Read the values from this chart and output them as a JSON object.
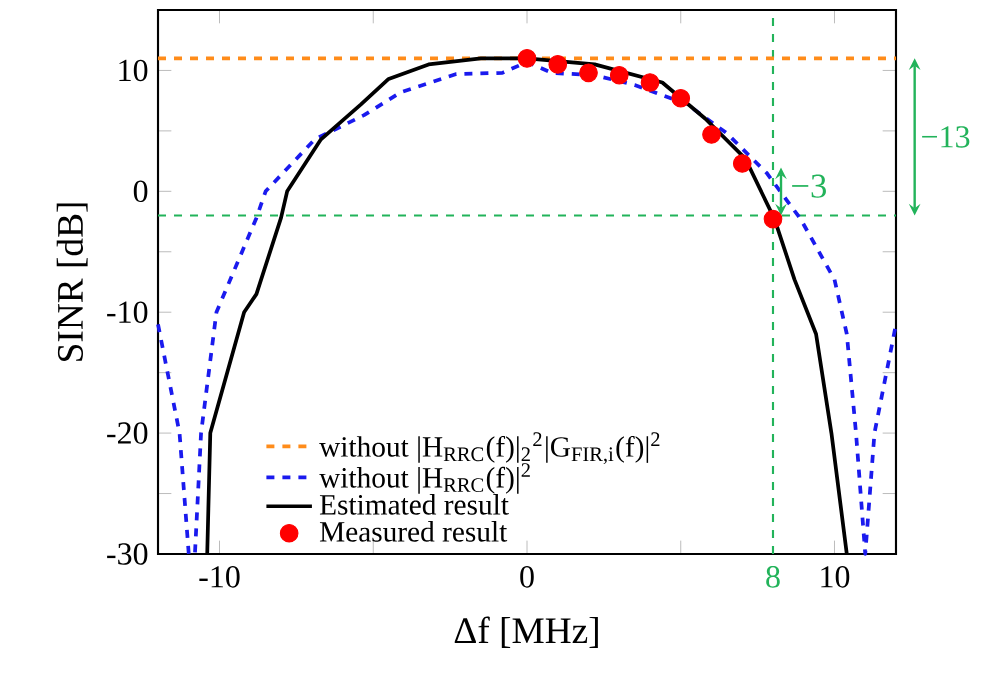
{
  "chart_data": {
    "type": "line",
    "xlabel": "Δf [MHz]",
    "ylabel": "SINR [dB]",
    "xlim": [
      -12,
      12
    ],
    "ylim": [
      -30,
      15
    ],
    "xticks": [
      -10,
      {
        "value": -5,
        "label": null
      },
      0,
      {
        "value": 5,
        "label": null
      },
      10
    ],
    "yticks": [
      -30,
      {
        "value": -25,
        "label": null
      },
      -20,
      {
        "value": -15,
        "label": null
      },
      -10,
      {
        "value": -5,
        "label": null
      },
      0,
      {
        "value": 5,
        "label": null
      },
      10
    ],
    "series": [
      {
        "name": "without |H$_{RRC}$(f)|$_{2}$$^{2}$|G$_{FIR,i}$(f)|$^{2}$",
        "line_style": "dashed",
        "color": "#ff8c1a",
        "x": [
          -12,
          12
        ],
        "values": [
          11,
          11
        ]
      },
      {
        "name": "without |H$_{RRC}$(f)|$^{2}$",
        "line_style": "dashed",
        "color": "#1a1aee",
        "x": [
          -12,
          -11.3,
          -11.0,
          -10.8,
          -10.6,
          -10.1,
          -8.8,
          -8.5,
          -6.9,
          -5.3,
          -4.1,
          -2.3,
          -0.8,
          0,
          0.8,
          2.2,
          3.5,
          5.2,
          6.5,
          7.8,
          8.9,
          10.0,
          10.4,
          10.7,
          11.0,
          11.3,
          12
        ],
        "values": [
          -11,
          -20,
          -30,
          -30,
          -20,
          -10,
          -2.2,
          0,
          4.3,
          6.3,
          8.2,
          9.7,
          9.8,
          10.7,
          9.8,
          9.6,
          8.8,
          7.2,
          4.8,
          1.5,
          -2.3,
          -7.3,
          -11.8,
          -20,
          -30,
          -20,
          -11
        ]
      },
      {
        "name": "Estimated result",
        "line_style": "solid",
        "color": "#000000",
        "x": [
          -10.4,
          -10.3,
          -9.2,
          -8.8,
          -8.0,
          -7.8,
          -6.7,
          -5.4,
          -4.5,
          -3.2,
          -1.5,
          0,
          2.2,
          4.4,
          5.8,
          7.1,
          8.05,
          8.7,
          9.4,
          9.9,
          10.4
        ],
        "values": [
          -30,
          -20,
          -10,
          -8.5,
          -2.2,
          0,
          4.3,
          7.2,
          9.3,
          10.5,
          11,
          11,
          10.5,
          9,
          6,
          2.7,
          -2.3,
          -7.3,
          -11.8,
          -20,
          -30
        ]
      },
      {
        "name": "Measured result",
        "type": "scatter",
        "marker": "circle",
        "color": "#ff0000",
        "x": [
          0,
          1,
          2,
          3,
          4,
          5,
          6,
          7,
          8
        ],
        "values": [
          11.0,
          10.5,
          9.8,
          9.6,
          9.0,
          7.7,
          4.7,
          2.3,
          -2.3
        ]
      }
    ],
    "ref_lines": [
      {
        "axis": "y",
        "value": -2,
        "color": "#22b35a",
        "line_style": "dashed"
      },
      {
        "axis": "x",
        "value": 8,
        "label": "8",
        "color": "#22b35a",
        "line_style": "dashed"
      }
    ],
    "annotations": [
      "−13",
      {
        "text": "−3",
        "x": 8,
        "y": -2
      }
    ],
    "legend": "bottom"
  }
}
